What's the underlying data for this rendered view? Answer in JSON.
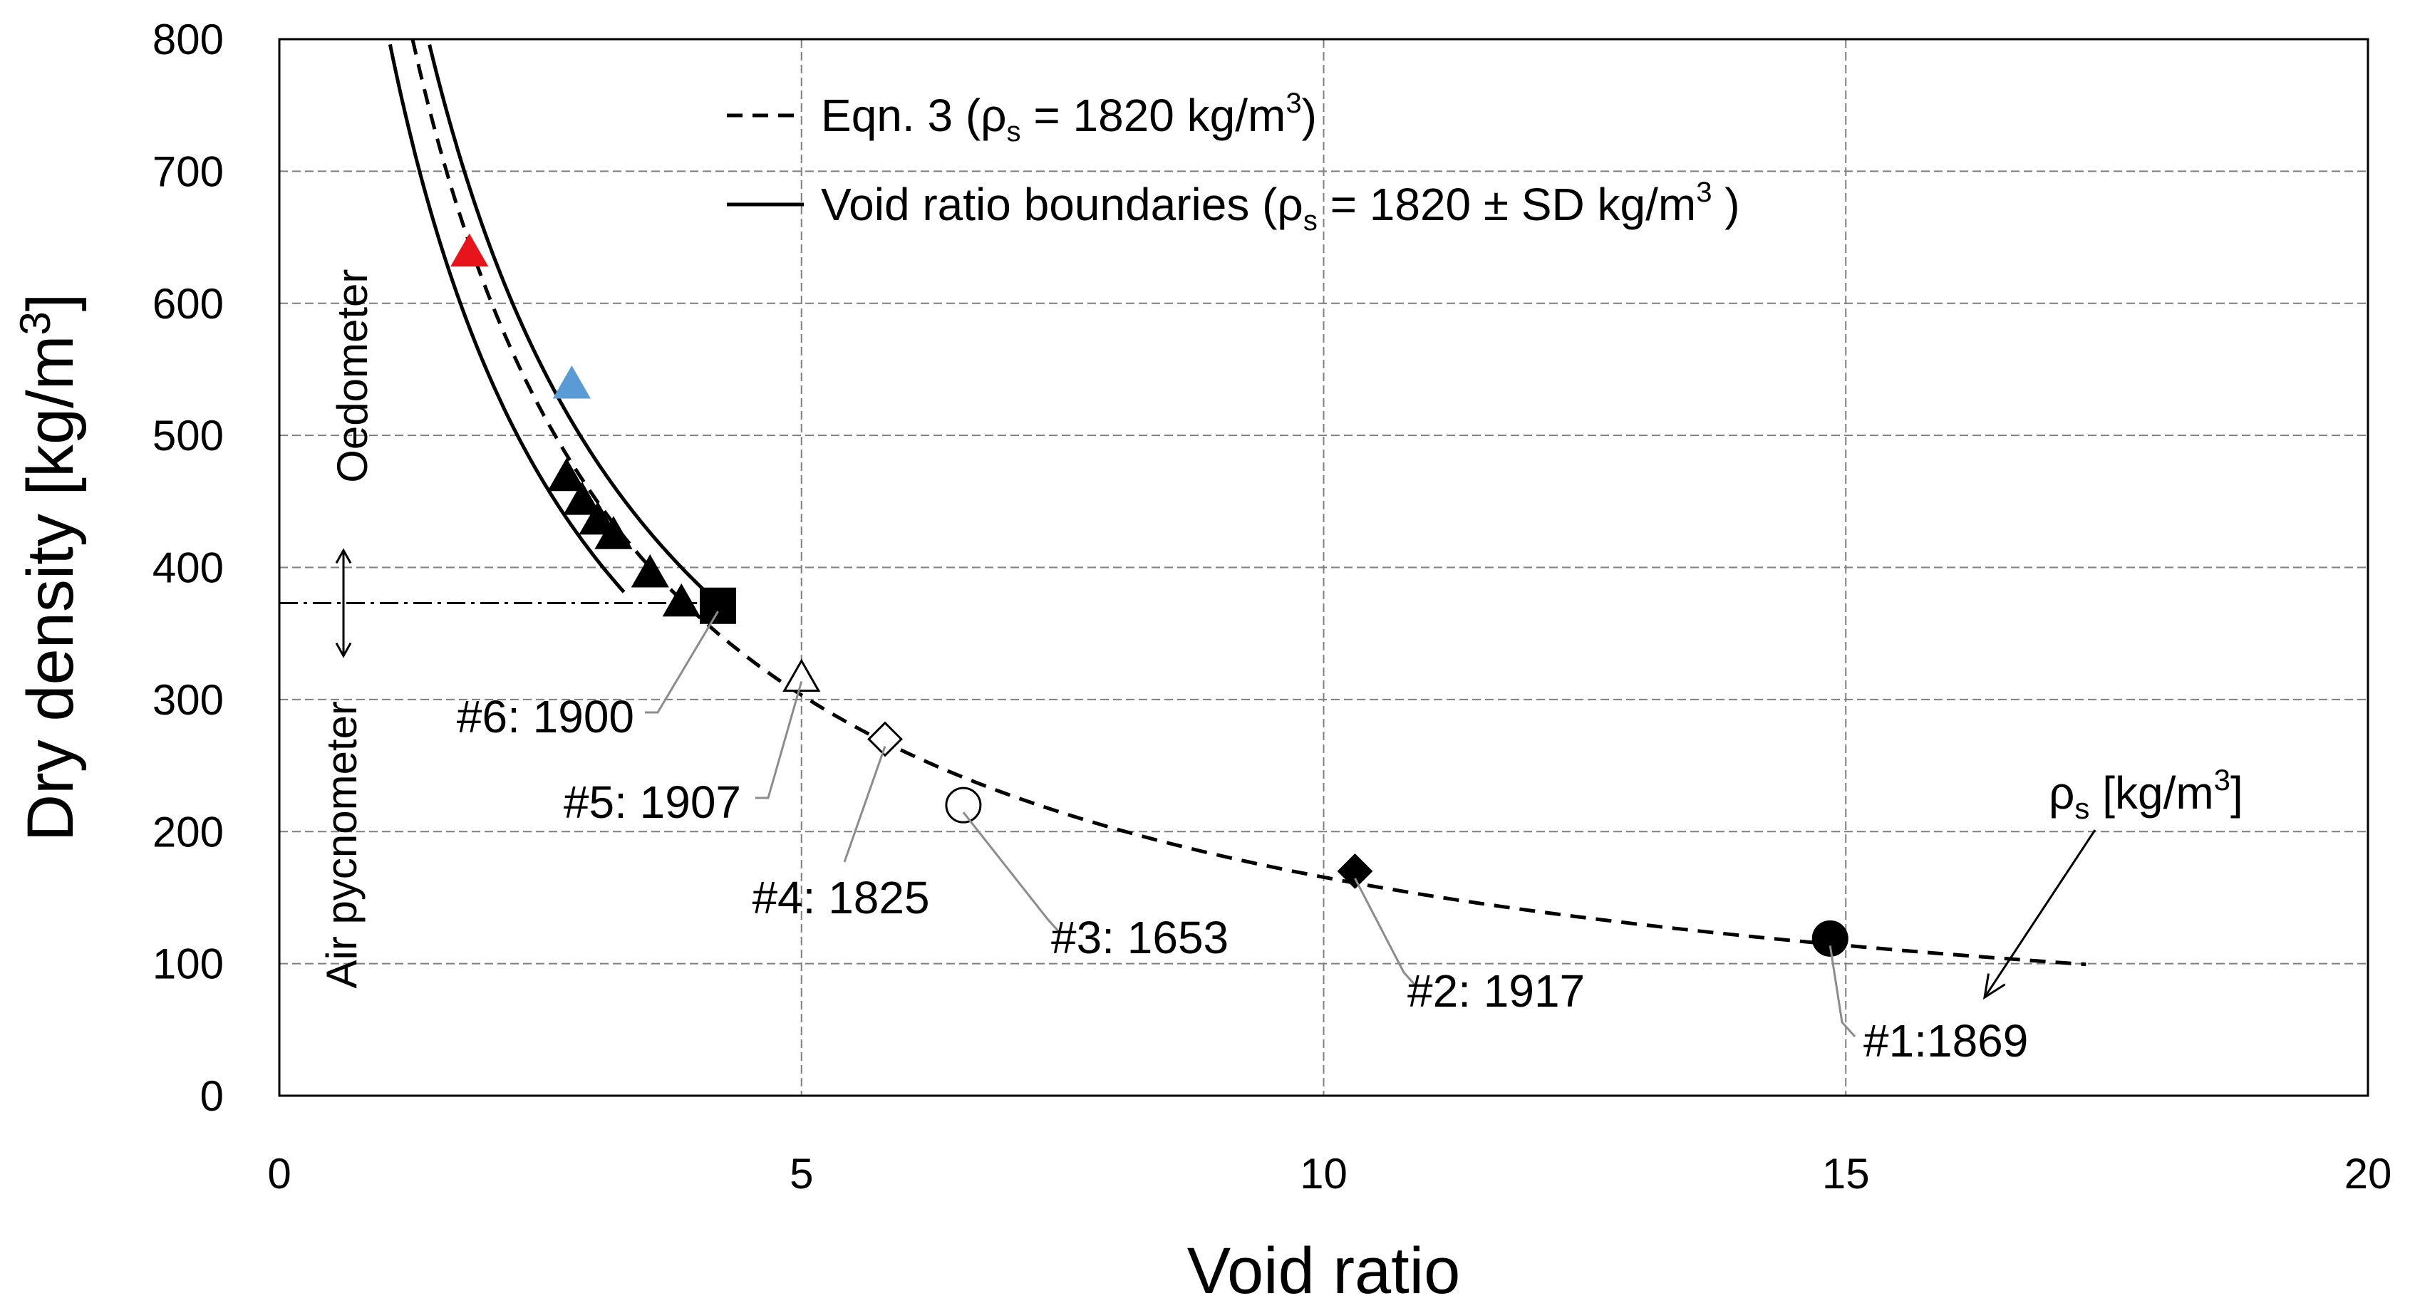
{
  "chart_data": {
    "type": "scatter",
    "xlabel": "Void ratio",
    "ylabel": "Dry density [kg/m",
    "ylabel_sup": "3",
    "ylabel_end": "]",
    "xlim": [
      0,
      20
    ],
    "ylim": [
      0,
      800
    ],
    "x_ticks": [
      "0",
      "5",
      "10",
      "15",
      "20"
    ],
    "y_ticks": [
      "0",
      "100",
      "200",
      "300",
      "400",
      "500",
      "600",
      "700",
      "800"
    ],
    "grid": true,
    "legend": {
      "position": "top",
      "eqn_label": "Eqn. 3  (ρ",
      "eqn_sub": "s",
      "eqn_rest": " = 1820 kg/m",
      "eqn_sup": "3",
      "eqn_end": ")",
      "bound_label": "Void ratio boundaries  (ρ",
      "bound_sub": "s",
      "bound_rest": " = 1820 ± SD kg/m",
      "bound_sup": "3",
      "bound_end": " )"
    },
    "rho_s": 1820,
    "rho_s_upper": 1940,
    "rho_s_lower": 1640,
    "curve_label": "ρ",
    "curve_label_sub": "s",
    "curve_label_rest": " [kg/m",
    "curve_label_sup": "3",
    "curve_label_end": "]",
    "method_split_density": 373,
    "region_labels": {
      "upper": "Oedometer",
      "lower": "Air pycnometer"
    },
    "series": [
      {
        "name": "oedometer-red",
        "marker": "triangle",
        "color": "#e8141b",
        "points": [
          {
            "x": 1.82,
            "y": 640
          }
        ]
      },
      {
        "name": "oedometer-blue",
        "marker": "triangle",
        "color": "#5b9bd5",
        "points": [
          {
            "x": 2.8,
            "y": 540
          }
        ]
      },
      {
        "name": "oedometer-black",
        "marker": "triangle",
        "color": "#000000",
        "points": [
          {
            "x": 2.75,
            "y": 470
          },
          {
            "x": 2.9,
            "y": 452
          },
          {
            "x": 3.05,
            "y": 437
          },
          {
            "x": 3.2,
            "y": 426
          },
          {
            "x": 3.55,
            "y": 397
          },
          {
            "x": 3.85,
            "y": 375
          }
        ]
      },
      {
        "name": "samples",
        "marker": "mixed",
        "color": "#000000",
        "points": [
          {
            "label": "#6: 1900",
            "x": 4.2,
            "y": 371,
            "marker": "square",
            "fill": "#000000"
          },
          {
            "label": "#5: 1907",
            "x": 5.0,
            "y": 318,
            "marker": "triangle",
            "fill": "#ffffff"
          },
          {
            "label": "#4: 1825",
            "x": 5.8,
            "y": 270,
            "marker": "diamond",
            "fill": "#ffffff"
          },
          {
            "label": "#3: 1653",
            "x": 6.55,
            "y": 220,
            "marker": "circle",
            "fill": "#ffffff"
          },
          {
            "label": "#2: 1917",
            "x": 10.3,
            "y": 170,
            "marker": "diamond",
            "fill": "#000000"
          },
          {
            "label": "#1:1869",
            "x": 14.85,
            "y": 119,
            "marker": "circle",
            "fill": "#000000"
          }
        ]
      }
    ]
  }
}
